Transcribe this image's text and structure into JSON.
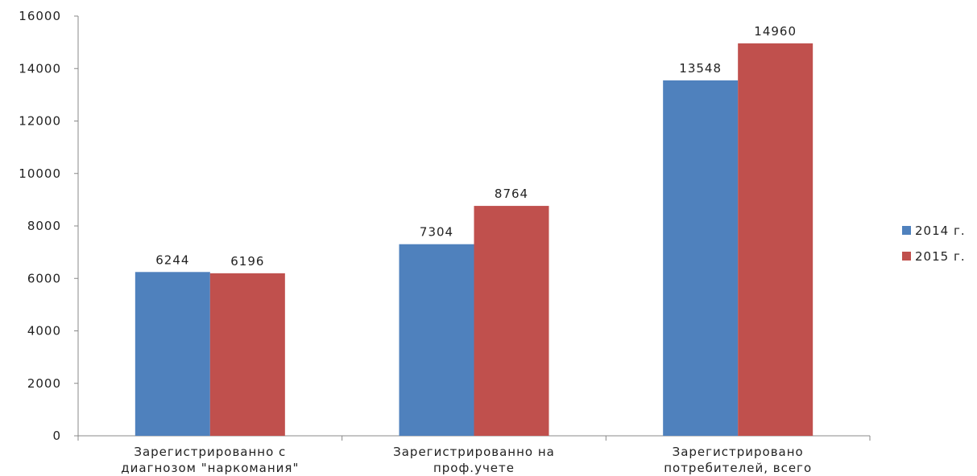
{
  "chart_data": {
    "type": "bar",
    "categories": [
      [
        "Зарегистрированно с",
        "диагнозом \"наркомания\""
      ],
      [
        "Зарегистрированно на",
        "проф.учете"
      ],
      [
        "Зарегистрировано",
        "потребителей, всего"
      ]
    ],
    "series": [
      {
        "name": "2014 г.",
        "color": "#4f81bd",
        "values": [
          6244,
          7304,
          13548
        ]
      },
      {
        "name": "2015 г.",
        "color": "#c0504d",
        "values": [
          6196,
          8764,
          14960
        ]
      }
    ],
    "title": "",
    "xlabel": "",
    "ylabel": "",
    "ylim": [
      0,
      16000
    ],
    "yticks": [
      0,
      2000,
      4000,
      6000,
      8000,
      10000,
      12000,
      14000,
      16000
    ],
    "grid": false,
    "legend_position": "right"
  }
}
